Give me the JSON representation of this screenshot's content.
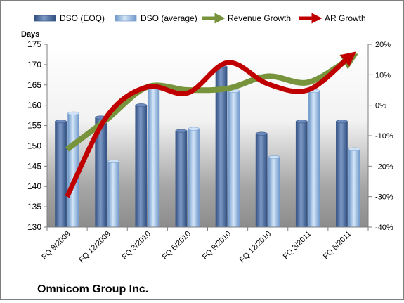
{
  "chart_data": {
    "type": "bar",
    "title": "Omnicom Group Inc.",
    "ylabel": "Days",
    "ylim": [
      130,
      175
    ],
    "y_ticks": [
      130,
      135,
      140,
      145,
      150,
      155,
      160,
      165,
      170,
      175
    ],
    "y2lim": [
      -40,
      20
    ],
    "y2_ticks": [
      "-40%",
      "-30%",
      "-20%",
      "-10%",
      "0%",
      "10%",
      "20%"
    ],
    "y2_tick_values": [
      -40,
      -30,
      -20,
      -10,
      0,
      10,
      20
    ],
    "categories": [
      "FQ 9/2009",
      "FQ 12/2009",
      "FQ 3/2010",
      "FQ 6/2010",
      "FQ 9/2010",
      "FQ 12/2010",
      "FQ 3/2011",
      "FQ 6/2011"
    ],
    "grid": false,
    "legend_position": "top",
    "series": [
      {
        "name": "DSO (EOQ)",
        "type": "bar",
        "axis": "left",
        "color": "#4f6fa3",
        "values": [
          156,
          157,
          160,
          153.7,
          169.5,
          153,
          156,
          156
        ]
      },
      {
        "name": "DSO (average)",
        "type": "bar",
        "axis": "left",
        "color": "#9ec2e8",
        "values": [
          158,
          146.2,
          164.5,
          154.2,
          163.5,
          147.2,
          163.5,
          149.2
        ]
      },
      {
        "name": "Revenue Growth",
        "type": "line",
        "axis": "right",
        "color": "#77933c",
        "values": [
          -14.5,
          -4.5,
          6,
          5,
          5.5,
          9.5,
          7.5,
          15
        ]
      },
      {
        "name": "AR Growth",
        "type": "line",
        "axis": "right",
        "color": "#c00000",
        "values": [
          -30,
          -3.5,
          6,
          4,
          14,
          7,
          5,
          15.5
        ]
      }
    ]
  }
}
